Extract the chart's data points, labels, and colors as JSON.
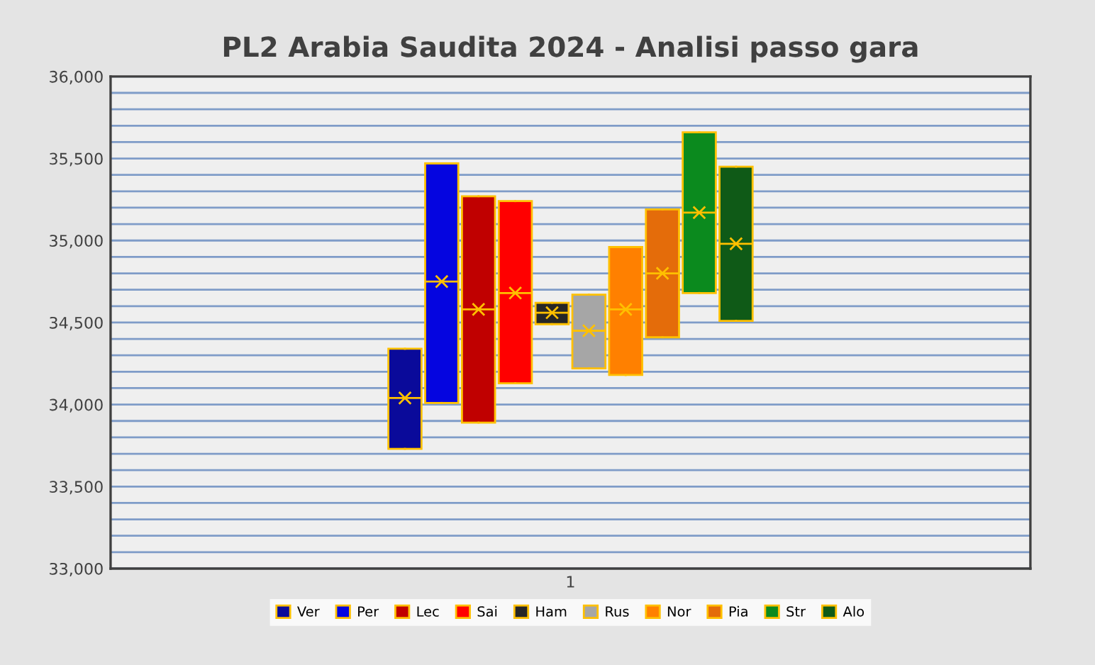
{
  "chart_data": {
    "type": "box",
    "title": "PL2 Arabia Saudita 2024 - Analisi passo gara",
    "categories": [
      "1"
    ],
    "ylim": [
      33000,
      36000
    ],
    "yticks": [
      {
        "value": 33000,
        "label": "33,000"
      },
      {
        "value": 33100,
        "label": null
      },
      {
        "value": 33200,
        "label": null
      },
      {
        "value": 33300,
        "label": null
      },
      {
        "value": 33400,
        "label": null
      },
      {
        "value": 33500,
        "label": "33,500"
      },
      {
        "value": 33600,
        "label": null
      },
      {
        "value": 33700,
        "label": null
      },
      {
        "value": 33800,
        "label": null
      },
      {
        "value": 33900,
        "label": null
      },
      {
        "value": 34000,
        "label": "34,000"
      },
      {
        "value": 34100,
        "label": null
      },
      {
        "value": 34200,
        "label": null
      },
      {
        "value": 34300,
        "label": null
      },
      {
        "value": 34400,
        "label": null
      },
      {
        "value": 34500,
        "label": "34,500"
      },
      {
        "value": 34600,
        "label": null
      },
      {
        "value": 34700,
        "label": null
      },
      {
        "value": 34800,
        "label": null
      },
      {
        "value": 34900,
        "label": null
      },
      {
        "value": 35000,
        "label": "35,000"
      },
      {
        "value": 35100,
        "label": null
      },
      {
        "value": 35200,
        "label": null
      },
      {
        "value": 35300,
        "label": null
      },
      {
        "value": 35400,
        "label": null
      },
      {
        "value": 35500,
        "label": "35,500"
      },
      {
        "value": 35600,
        "label": null
      },
      {
        "value": 35700,
        "label": null
      },
      {
        "value": 35800,
        "label": null
      },
      {
        "value": 35900,
        "label": null
      },
      {
        "value": 36000,
        "label": "36,000"
      }
    ],
    "grid": "y",
    "legend": "bottom",
    "marker": "cross",
    "series": [
      {
        "name": "Ver",
        "color": "#0a0a9a",
        "boxes": [
          {
            "low": 33730,
            "q1": 33730,
            "median": 34040,
            "q3": 34340,
            "high": 34340,
            "mean": 34040
          }
        ]
      },
      {
        "name": "Per",
        "color": "#0505e0",
        "boxes": [
          {
            "low": 34010,
            "q1": 34010,
            "median": 34750,
            "q3": 35470,
            "high": 35470,
            "mean": 34750
          }
        ]
      },
      {
        "name": "Lec",
        "color": "#c00000",
        "boxes": [
          {
            "low": 33890,
            "q1": 33890,
            "median": 34580,
            "q3": 35270,
            "high": 35270,
            "mean": 34580
          }
        ]
      },
      {
        "name": "Sai",
        "color": "#ff0000",
        "boxes": [
          {
            "low": 34130,
            "q1": 34130,
            "median": 34680,
            "q3": 35240,
            "high": 35240,
            "mean": 34680
          }
        ]
      },
      {
        "name": "Ham",
        "color": "#262626",
        "boxes": [
          {
            "low": 34490,
            "q1": 34490,
            "median": 34560,
            "q3": 34620,
            "high": 34620,
            "mean": 34560
          }
        ]
      },
      {
        "name": "Rus",
        "color": "#a6a6a6",
        "boxes": [
          {
            "low": 34220,
            "q1": 34220,
            "median": 34450,
            "q3": 34670,
            "high": 34670,
            "mean": 34450
          }
        ]
      },
      {
        "name": "Nor",
        "color": "#ff8000",
        "boxes": [
          {
            "low": 34180,
            "q1": 34180,
            "median": 34580,
            "q3": 34960,
            "high": 34960,
            "mean": 34580
          }
        ]
      },
      {
        "name": "Pia",
        "color": "#e46c0a",
        "boxes": [
          {
            "low": 34410,
            "q1": 34410,
            "median": 34800,
            "q3": 35190,
            "high": 35190,
            "mean": 34800
          }
        ]
      },
      {
        "name": "Str",
        "color": "#0b8a1e",
        "boxes": [
          {
            "low": 34680,
            "q1": 34680,
            "median": 35170,
            "q3": 35660,
            "high": 35660,
            "mean": 35170
          }
        ]
      },
      {
        "name": "Alo",
        "color": "#0f5a17",
        "boxes": [
          {
            "low": 34510,
            "q1": 34510,
            "median": 34980,
            "q3": 35450,
            "high": 35450,
            "mean": 34980
          }
        ]
      }
    ]
  }
}
